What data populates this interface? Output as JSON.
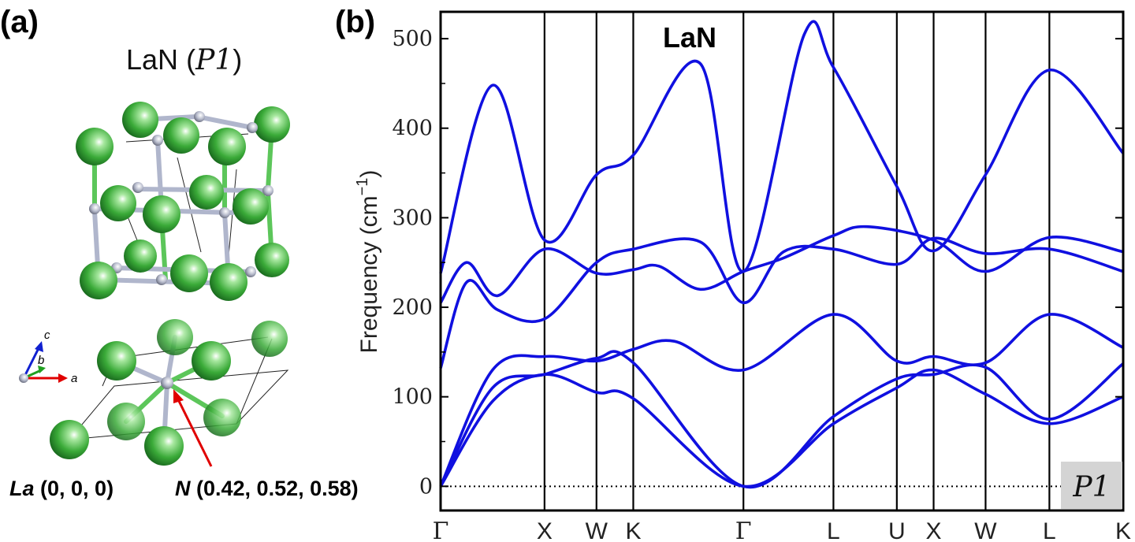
{
  "panels": {
    "a": "(a)",
    "b": "(b)"
  },
  "structure": {
    "formula": "LaN",
    "space_group_open": "(",
    "space_group": "P1",
    "space_group_close": ")",
    "axes": {
      "a": "a",
      "b": "b",
      "c": "c"
    },
    "atoms": {
      "la_symbol": "La",
      "la_coords": "(0, 0, 0)",
      "n_symbol": "N",
      "n_coords": "(0.42, 0.52, 0.58)"
    },
    "colors": {
      "La": "#3cb043",
      "N": "#b0b6cc",
      "arrow": "#e00000"
    }
  },
  "chart_data": {
    "type": "line",
    "title": "LaN",
    "ylabel": "Frequency (cm⁻¹)",
    "ylabel_text": "Frequency",
    "ylabel_unit": "(cm",
    "ylabel_exp": "−1",
    "ylabel_close": ")",
    "ylim": [
      -27,
      530
    ],
    "yticks": [
      0,
      100,
      200,
      300,
      400,
      500
    ],
    "x_path": [
      "Γ",
      "X",
      "W",
      "K",
      "Γ",
      "L",
      "U",
      "X",
      "W",
      "L",
      "K"
    ],
    "x_ticks": [
      0,
      1,
      1.5,
      1.854,
      2.914,
      3.78,
      4.39,
      4.744,
      5.244,
      5.858,
      6.568
    ],
    "badge": "P1",
    "line_color": "#1010e0",
    "zero_line": "dotted",
    "series": [
      {
        "values": [
          [
            0,
            238
          ],
          [
            0.5,
            448
          ],
          [
            1,
            275
          ],
          [
            1.5,
            348
          ],
          [
            1.854,
            370
          ],
          [
            2.5,
            472
          ],
          [
            2.914,
            240
          ],
          [
            3.5,
            505
          ],
          [
            3.78,
            468
          ],
          [
            4.39,
            335
          ],
          [
            4.744,
            263
          ],
          [
            5.244,
            348
          ],
          [
            5.858,
            465
          ],
          [
            6.568,
            372
          ]
        ]
      },
      {
        "values": [
          [
            0,
            205
          ],
          [
            0.25,
            250
          ],
          [
            0.55,
            213
          ],
          [
            1,
            265
          ],
          [
            1.5,
            238
          ],
          [
            1.854,
            242
          ],
          [
            2.1,
            246
          ],
          [
            2.5,
            220
          ],
          [
            2.914,
            240
          ],
          [
            3.3,
            255
          ],
          [
            3.78,
            280
          ],
          [
            4.1,
            290
          ],
          [
            4.744,
            275
          ],
          [
            5.244,
            240
          ],
          [
            5.858,
            278
          ],
          [
            6.568,
            262
          ]
        ]
      },
      {
        "values": [
          [
            0,
            132
          ],
          [
            0.25,
            228
          ],
          [
            0.55,
            197
          ],
          [
            1,
            187
          ],
          [
            1.5,
            250
          ],
          [
            1.854,
            265
          ],
          [
            2.5,
            273
          ],
          [
            2.914,
            205
          ],
          [
            3.3,
            262
          ],
          [
            3.78,
            265
          ],
          [
            4.39,
            248
          ],
          [
            4.744,
            277
          ],
          [
            5.244,
            260
          ],
          [
            5.858,
            265
          ],
          [
            6.568,
            240
          ]
        ]
      },
      {
        "values": [
          [
            0,
            0
          ],
          [
            0.5,
            130
          ],
          [
            1,
            145
          ],
          [
            1.5,
            140
          ],
          [
            1.854,
            153
          ],
          [
            2.25,
            162
          ],
          [
            2.914,
            130
          ],
          [
            3.78,
            192
          ],
          [
            4.39,
            140
          ],
          [
            4.744,
            145
          ],
          [
            5.244,
            138
          ],
          [
            5.858,
            192
          ],
          [
            6.568,
            155
          ]
        ]
      },
      {
        "values": [
          [
            0,
            0
          ],
          [
            0.5,
            110
          ],
          [
            1,
            125
          ],
          [
            1.5,
            143
          ],
          [
            1.854,
            138
          ],
          [
            2.914,
            0
          ],
          [
            3.78,
            78
          ],
          [
            4.39,
            120
          ],
          [
            4.744,
            125
          ],
          [
            5.244,
            133
          ],
          [
            5.858,
            75
          ],
          [
            6.568,
            137
          ]
        ]
      },
      {
        "values": [
          [
            0,
            0
          ],
          [
            0.5,
            95
          ],
          [
            1,
            125
          ],
          [
            1.5,
            105
          ],
          [
            1.854,
            98
          ],
          [
            2.914,
            0
          ],
          [
            3.78,
            70
          ],
          [
            4.39,
            110
          ],
          [
            4.744,
            130
          ],
          [
            5.244,
            103
          ],
          [
            5.858,
            70
          ],
          [
            6.568,
            100
          ]
        ]
      }
    ]
  }
}
